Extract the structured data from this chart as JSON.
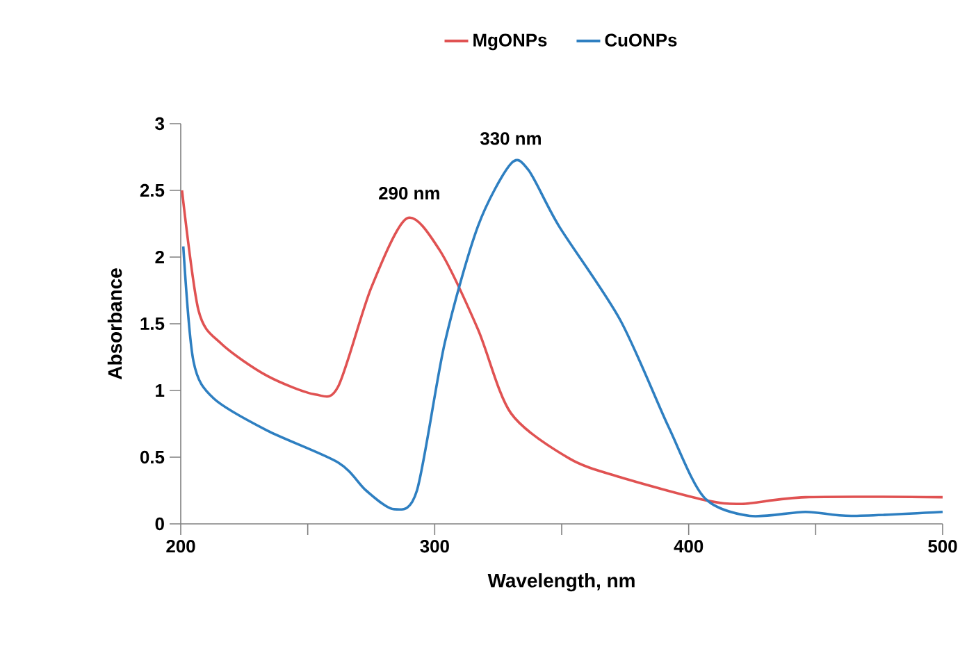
{
  "chart_data": {
    "type": "line",
    "xlabel": "Wavelength, nm",
    "ylabel": "Absorbance",
    "xlim": [
      200,
      500
    ],
    "ylim": [
      0,
      3
    ],
    "xticks": [
      200,
      {
        "value": 250,
        "label": null
      },
      300,
      {
        "value": 350,
        "label": null
      },
      400,
      {
        "value": 450,
        "label": null
      },
      500
    ],
    "yticks": [
      0,
      0.5,
      1,
      1.5,
      2,
      2.5,
      3
    ],
    "grid": false,
    "legend": "top",
    "marker": "none",
    "line_style": "solid",
    "annotations": [
      {
        "text": "290 nm",
        "x": 290,
        "y": 2.29
      },
      {
        "text": "330 nm",
        "x": 330,
        "y": 2.7
      }
    ],
    "series": [
      {
        "name": "MgONPs",
        "color": "#e05252",
        "x": [
          200.5,
          207,
          216,
          234,
          253,
          262,
          275,
          289,
          302,
          317,
          330,
          353,
          373,
          406,
          421,
          446,
          500
        ],
        "values": [
          2.5,
          1.6,
          1.35,
          1.11,
          0.97,
          1.03,
          1.77,
          2.29,
          2.05,
          1.46,
          0.83,
          0.49,
          0.35,
          0.18,
          0.15,
          0.2,
          0.2
        ]
      },
      {
        "name": "CuONPs",
        "color": "#2e7fc1",
        "x": [
          201,
          205,
          213,
          234,
          262,
          273,
          284,
          293,
          304,
          317,
          330,
          337,
          349,
          373,
          392,
          406,
          424,
          446,
          464,
          500
        ],
        "values": [
          2.08,
          1.22,
          0.94,
          0.7,
          0.46,
          0.25,
          0.11,
          0.25,
          1.36,
          2.23,
          2.7,
          2.65,
          2.23,
          1.53,
          0.73,
          0.2,
          0.06,
          0.09,
          0.06,
          0.09
        ]
      }
    ]
  }
}
